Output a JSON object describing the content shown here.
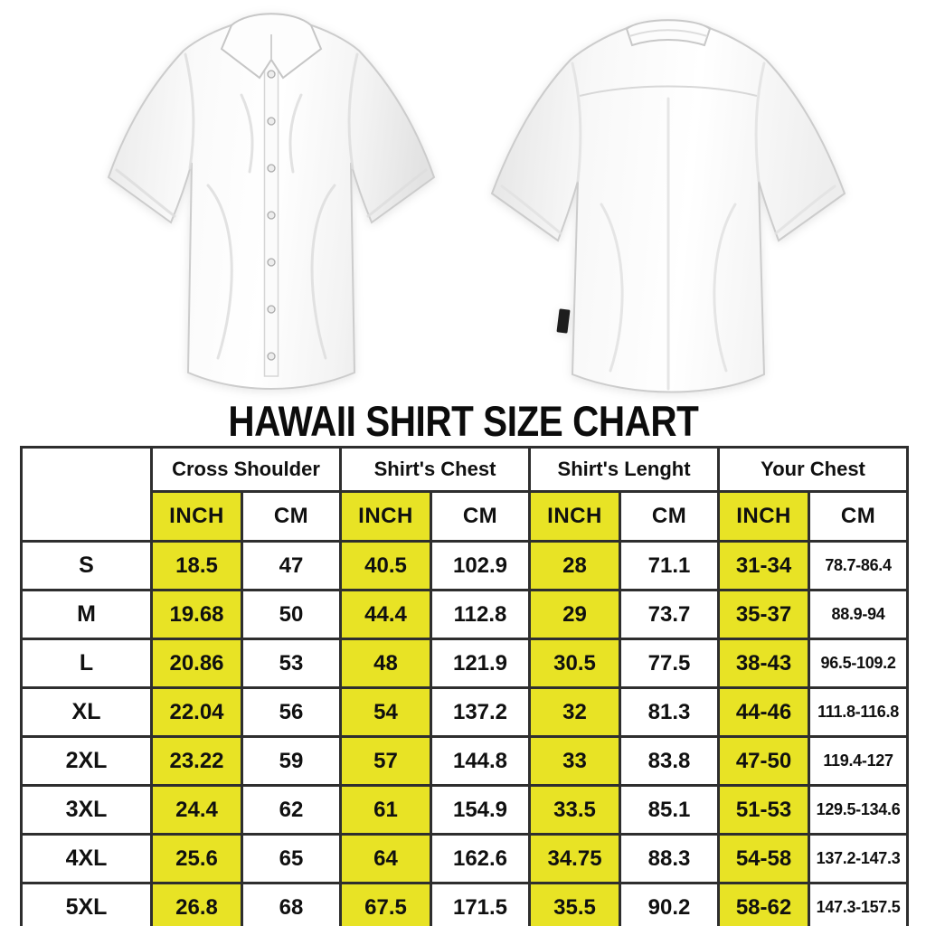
{
  "chart_data": {
    "type": "table",
    "title": "HAWAII SHIRT SIZE CHART",
    "column_groups": [
      "Cross Shoulder",
      "Shirt's Chest",
      "Shirt's Lenght",
      "Your Chest"
    ],
    "units": [
      "INCH",
      "CM"
    ],
    "size_column_header": "",
    "rows": [
      {
        "size": "S",
        "values": [
          "18.5",
          "47",
          "40.5",
          "102.9",
          "28",
          "71.1",
          "31-34",
          "78.7-86.4"
        ]
      },
      {
        "size": "M",
        "values": [
          "19.68",
          "50",
          "44.4",
          "112.8",
          "29",
          "73.7",
          "35-37",
          "88.9-94"
        ]
      },
      {
        "size": "L",
        "values": [
          "20.86",
          "53",
          "48",
          "121.9",
          "30.5",
          "77.5",
          "38-43",
          "96.5-109.2"
        ]
      },
      {
        "size": "XL",
        "values": [
          "22.04",
          "56",
          "54",
          "137.2",
          "32",
          "81.3",
          "44-46",
          "111.8-116.8"
        ]
      },
      {
        "size": "2XL",
        "values": [
          "23.22",
          "59",
          "57",
          "144.8",
          "33",
          "83.8",
          "47-50",
          "119.4-127"
        ]
      },
      {
        "size": "3XL",
        "values": [
          "24.4",
          "62",
          "61",
          "154.9",
          "33.5",
          "85.1",
          "51-53",
          "129.5-134.6"
        ]
      },
      {
        "size": "4XL",
        "values": [
          "25.6",
          "65",
          "64",
          "162.6",
          "34.75",
          "88.3",
          "54-58",
          "137.2-147.3"
        ]
      },
      {
        "size": "5XL",
        "values": [
          "26.8",
          "68",
          "67.5",
          "171.5",
          "35.5",
          "90.2",
          "58-62",
          "147.3-157.5"
        ]
      }
    ],
    "highlighted_unit": "INCH",
    "colors": {
      "highlight": "#e8e325",
      "border": "#2e2e2e",
      "text": "#101010",
      "background": "#ffffff"
    },
    "layout": {
      "grid": true,
      "header_rows": 2,
      "row_label_column": "sizes"
    }
  }
}
